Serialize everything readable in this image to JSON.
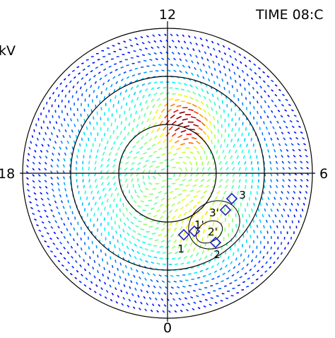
{
  "plot": {
    "clock_labels": {
      "top": "12",
      "right": "6",
      "bottom": "0",
      "left": "18"
    },
    "time_label": "TIME 08:C",
    "unit_label": "kV",
    "point_labels": [
      "1",
      "1'",
      "2'",
      "2",
      "3'",
      "3"
    ]
  }
}
